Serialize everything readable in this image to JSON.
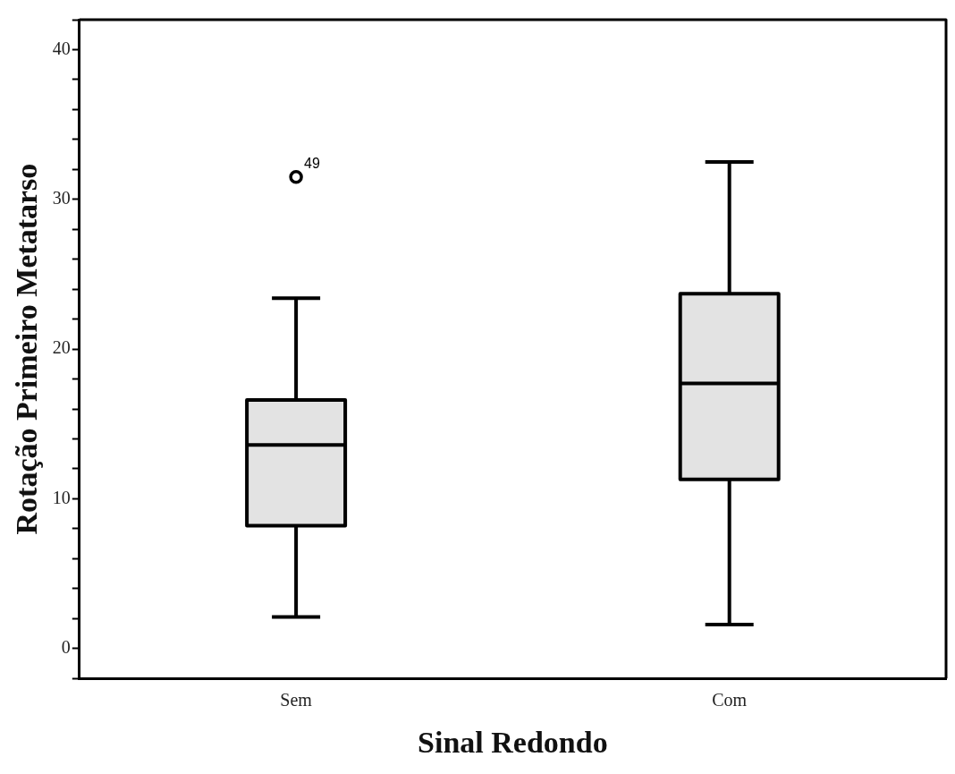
{
  "chart_data": {
    "type": "box",
    "xlabel": "Sinal Redondo",
    "ylabel": "Rotação Primeiro Metatarso",
    "categories": [
      "Sem",
      "Com"
    ],
    "color": "#e3e3e3",
    "boxes": [
      {
        "low": 2.1,
        "q1": 8.2,
        "median": 13.6,
        "q3": 16.6,
        "high": 23.4,
        "outliers": [
          31.5
        ]
      },
      {
        "low": 1.6,
        "q1": 11.3,
        "median": 17.7,
        "q3": 23.7,
        "high": 32.5
      }
    ],
    "ylim": [
      -2,
      42
    ],
    "yticks": [
      {
        "value": -2,
        "label": null
      },
      0,
      {
        "value": 2,
        "label": null
      },
      {
        "value": 4,
        "label": null
      },
      {
        "value": 6,
        "label": null
      },
      {
        "value": 8,
        "label": null
      },
      10,
      {
        "value": 12,
        "label": null
      },
      {
        "value": 14,
        "label": null
      },
      {
        "value": 16,
        "label": null
      },
      {
        "value": 18,
        "label": null
      },
      20,
      {
        "value": 22,
        "label": null
      },
      {
        "value": 24,
        "label": null
      },
      {
        "value": 26,
        "label": null
      },
      {
        "value": 28,
        "label": null
      },
      30,
      {
        "value": 32,
        "label": null
      },
      {
        "value": 34,
        "label": null
      },
      {
        "value": 36,
        "label": null
      },
      {
        "value": 38,
        "label": null
      },
      40,
      {
        "value": 42,
        "label": null
      }
    ],
    "annotations": [
      "49"
    ]
  }
}
